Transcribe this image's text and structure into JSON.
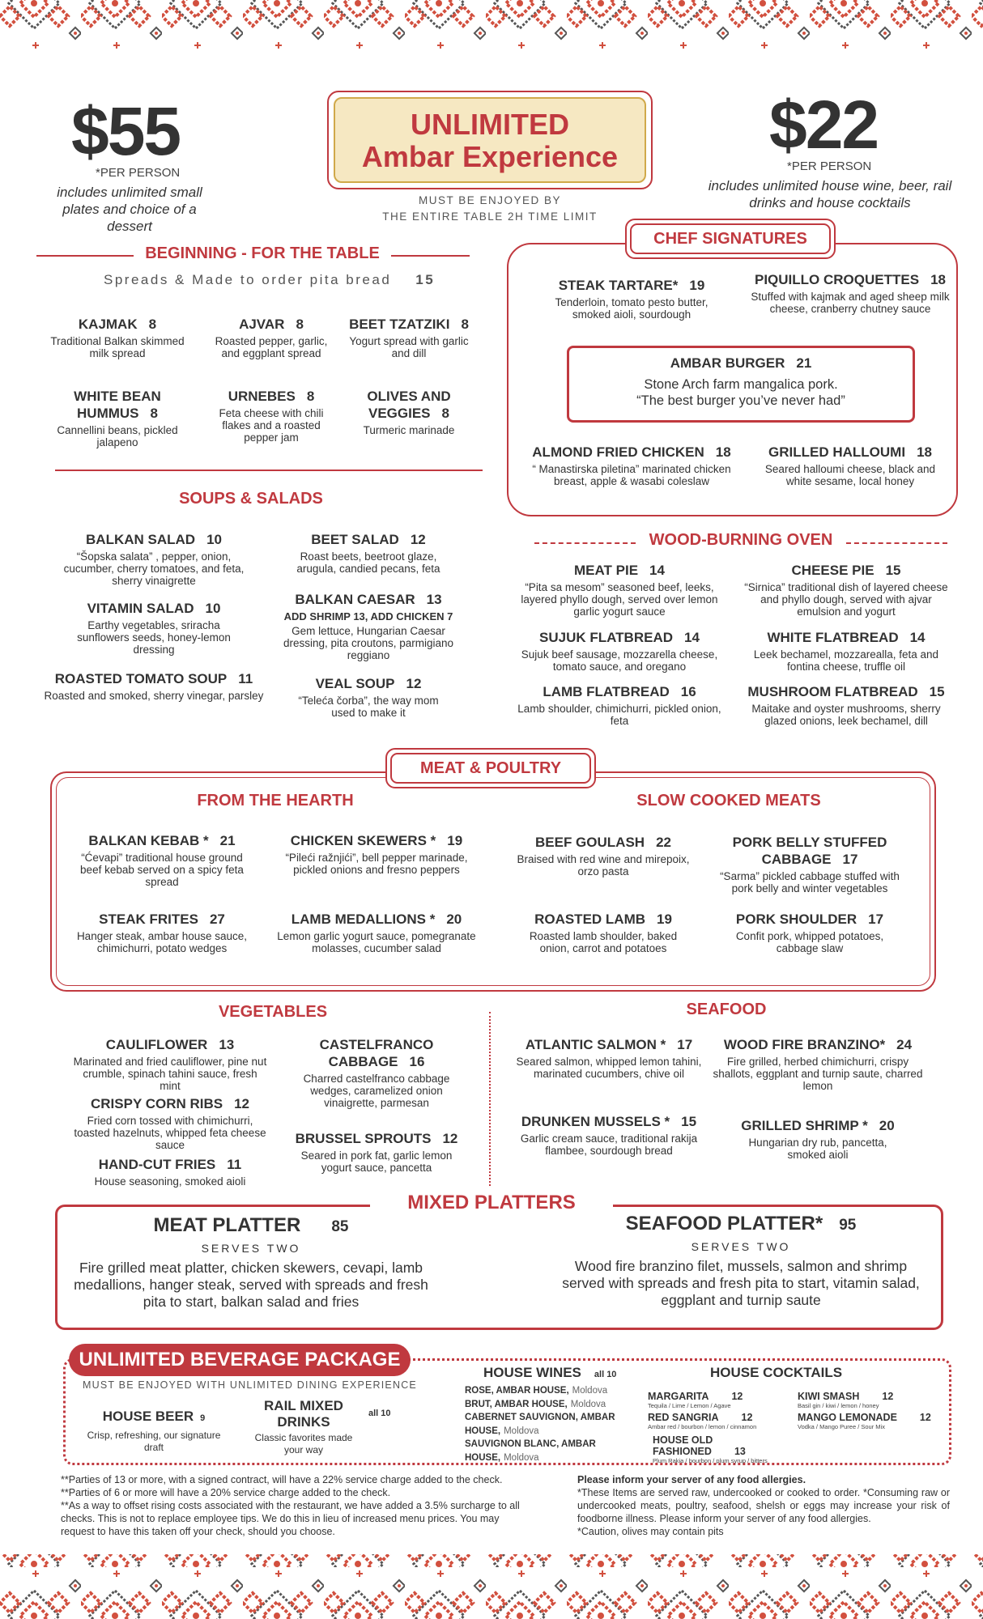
{
  "colors": {
    "accent": "#c0393f",
    "hero_bg": "#f6e8c2",
    "text": "#333333"
  },
  "header": {
    "left_price": "$55",
    "left_per": "*PER PERSON",
    "left_includes": "includes unlimited small plates and choice of a dessert",
    "hero_line1": "UNLIMITED",
    "hero_line2": "Ambar Experience",
    "hero_note1": "MUST BE ENJOYED BY",
    "hero_note2": "THE ENTIRE TABLE 2H TIME LIMIT",
    "right_price": "$22",
    "right_per": "*PER PERSON",
    "right_includes": "includes unlimited house wine, beer, rail drinks and house cocktails"
  },
  "beginning": {
    "title": "BEGINNING - FOR THE TABLE",
    "spreads": "Spreads & Made to order pita bread",
    "spreads_price": "15",
    "items": [
      {
        "name": "KAJMAK",
        "price": "8",
        "desc": "Traditional Balkan skimmed milk spread"
      },
      {
        "name": "AJVAR",
        "price": "8",
        "desc": "Roasted pepper, garlic, and eggplant spread"
      },
      {
        "name": "BEET TZATZIKI",
        "price": "8",
        "desc": "Yogurt spread with garlic and dill"
      },
      {
        "name": "WHITE BEAN HUMMUS",
        "price": "8",
        "desc": "Cannellini beans, pickled jalapeno"
      },
      {
        "name": "URNEBES",
        "price": "8",
        "desc": "Feta cheese with chili flakes and a roasted pepper jam"
      },
      {
        "name": "OLIVES AND VEGGIES",
        "price": "8",
        "desc": "Turmeric marinade"
      }
    ]
  },
  "soups": {
    "title": "SOUPS & SALADS",
    "items": [
      {
        "name": "BALKAN SALAD",
        "price": "10",
        "desc": "“Šopska salata” , pepper, onion, cucumber, cherry tomatoes, and feta, sherry vinaigrette"
      },
      {
        "name": "VITAMIN SALAD",
        "price": "10",
        "desc": "Earthy vegetables, sriracha sunflowers seeds, honey-lemon dressing"
      },
      {
        "name": "ROASTED TOMATO SOUP",
        "price": "11",
        "desc": "Roasted and smoked, sherry vinegar, parsley"
      },
      {
        "name": "BEET SALAD",
        "price": "12",
        "desc": "Roast beets, beetroot glaze, arugula, candied pecans, feta"
      },
      {
        "name": "BALKAN CAESAR",
        "price": "13",
        "addon": "ADD SHRIMP 13, ADD CHICKEN 7",
        "desc": "Gem lettuce, Hungarian Caesar dressing, pita croutons, parmigiano reggiano"
      },
      {
        "name": "VEAL SOUP",
        "price": "12",
        "desc": "“Teleća čorba”, the way mom used to make it"
      }
    ]
  },
  "chef": {
    "title": "CHEF SIGNATURES",
    "items": [
      {
        "name": "STEAK TARTARE*",
        "price": "19",
        "desc": "Tenderloin, tomato pesto butter, smoked aioli, sourdough"
      },
      {
        "name": "PIQUILLO CROQUETTES",
        "price": "18",
        "desc": "Stuffed with kajmak and aged sheep milk cheese, cranberry chutney sauce"
      },
      {
        "name": "ALMOND FRIED CHICKEN",
        "price": "18",
        "desc": "“ Manastirska piletina” marinated chicken breast, apple & wasabi coleslaw"
      },
      {
        "name": "GRILLED HALLOUMI",
        "price": "18",
        "desc": "Seared halloumi cheese, black and white sesame, local honey"
      }
    ],
    "burger": {
      "name": "AMBAR BURGER",
      "price": "21",
      "desc1": "Stone Arch farm mangalica pork.",
      "desc2": "“The best burger you’ve never had”"
    }
  },
  "oven": {
    "title": "WOOD-BURNING OVEN",
    "items": [
      {
        "name": "MEAT PIE",
        "price": "14",
        "desc": "“Pita sa mesom” seasoned beef, leeks, layered phyllo dough, served over lemon garlic yogurt sauce"
      },
      {
        "name": "CHEESE PIE",
        "price": "15",
        "desc": "“Sirnica” traditional dish of layered cheese and phyllo dough, served with ajvar emulsion and yogurt"
      },
      {
        "name": "SUJUK FLATBREAD",
        "price": "14",
        "desc": "Sujuk beef sausage, mozzarella cheese, tomato sauce, and oregano"
      },
      {
        "name": "WHITE FLATBREAD",
        "price": "14",
        "desc": "Leek bechamel, mozzarealla, feta and fontina cheese, truffle oil"
      },
      {
        "name": "LAMB FLATBREAD",
        "price": "16",
        "desc": "Lamb shoulder, chimichurri, pickled onion, feta"
      },
      {
        "name": "MUSHROOM FLATBREAD",
        "price": "15",
        "desc": "Maitake and oyster mushrooms, sherry glazed onions, leek bechamel, dill"
      }
    ]
  },
  "meat": {
    "title": "MEAT & POULTRY",
    "hearth_title": "FROM THE HEARTH",
    "slow_title": "SLOW COOKED MEATS",
    "hearth": [
      {
        "name": "BALKAN KEBAB *",
        "price": "21",
        "desc": "“Ćevapi” traditional house ground beef kebab served on a spicy feta spread"
      },
      {
        "name": "CHICKEN SKEWERS *",
        "price": "19",
        "desc": "“Pileći ražnjići”, bell pepper marinade, pickled onions and fresno peppers"
      },
      {
        "name": "STEAK FRITES",
        "price": "27",
        "desc": "Hanger steak, ambar house sauce, chimichurri, potato wedges"
      },
      {
        "name": "LAMB MEDALLIONS *",
        "price": "20",
        "desc": "Lemon garlic yogurt sauce, pomegranate molasses, cucumber salad"
      }
    ],
    "slow": [
      {
        "name": "BEEF GOULASH",
        "price": "22",
        "desc": "Braised with red wine and mirepoix, orzo pasta"
      },
      {
        "name": "PORK BELLY STUFFED CABBAGE",
        "price": "17",
        "desc": "“Sarma” pickled cabbage stuffed with pork belly and winter vegetables"
      },
      {
        "name": "ROASTED LAMB",
        "price": "19",
        "desc": "Roasted lamb shoulder, baked onion, carrot and potatoes"
      },
      {
        "name": "PORK SHOULDER",
        "price": "17",
        "desc": "Confit pork, whipped potatoes, cabbage slaw"
      }
    ]
  },
  "vegetables": {
    "title": "VEGETABLES",
    "items": [
      {
        "name": "CAULIFLOWER",
        "price": "13",
        "desc": "Marinated and fried cauliflower, pine nut crumble, spinach tahini sauce, fresh mint"
      },
      {
        "name": "CRISPY CORN RIBS",
        "price": "12",
        "desc": "Fried corn tossed with chimichurri, toasted hazelnuts, whipped feta cheese sauce"
      },
      {
        "name": "HAND-CUT FRIES",
        "price": "11",
        "desc": "House seasoning, smoked aioli"
      },
      {
        "name": "CASTELFRANCO CABBAGE",
        "price": "16",
        "desc": "Charred castelfranco cabbage wedges, caramelized onion vinaigrette, parmesan"
      },
      {
        "name": "BRUSSEL SPROUTS",
        "price": "12",
        "desc": "Seared in pork fat, garlic lemon yogurt sauce, pancetta"
      }
    ]
  },
  "seafood": {
    "title": "SEAFOOD",
    "items": [
      {
        "name": "ATLANTIC SALMON *",
        "price": "17",
        "desc": "Seared salmon, whipped lemon tahini, marinated cucumbers, chive oil"
      },
      {
        "name": "DRUNKEN MUSSELS *",
        "price": "15",
        "desc": "Garlic cream sauce, traditional rakija flambee, sourdough bread"
      },
      {
        "name": "WOOD FIRE BRANZINO*",
        "price": "24",
        "desc": "Fire grilled, herbed chimichurri, crispy shallots, eggplant and turnip saute, charred lemon"
      },
      {
        "name": "GRILLED SHRIMP *",
        "price": "20",
        "desc": "Hungarian dry rub, pancetta, smoked aioli"
      }
    ]
  },
  "platters": {
    "title": "MIXED PLATTERS",
    "meat": {
      "name": "MEAT PLATTER",
      "price": "85",
      "serves": "SERVES TWO",
      "desc": "Fire grilled meat platter, chicken skewers, cevapi, lamb medallions, hanger steak, served with spreads and fresh pita to start, balkan salad and fries"
    },
    "seafood": {
      "name": "SEAFOOD PLATTER*",
      "price": "95",
      "serves": "SERVES TWO",
      "desc": "Wood fire branzino filet, mussels, salmon and shrimp served with spreads and fresh pita to start, vitamin salad, eggplant and turnip saute"
    }
  },
  "beverage": {
    "title": "UNLIMITED BEVERAGE PACKAGE",
    "note": "MUST BE ENJOYED WITH UNLIMITED DINING EXPERIENCE",
    "beer": {
      "name": "HOUSE BEER",
      "price": "9",
      "desc": "Crisp, refreshing, our signature draft"
    },
    "rail": {
      "name": "RAIL MIXED DRINKS",
      "price": "all 10",
      "desc": "Classic favorites made your way"
    },
    "wines": {
      "title": "HOUSE WINES",
      "price": "all 10",
      "items": [
        {
          "name": "ROSE, AMBAR HOUSE,",
          "origin": "Moldova"
        },
        {
          "name": "BRUT, AMBAR HOUSE,",
          "origin": "Moldova"
        },
        {
          "name": "CABERNET SAUVIGNON, AMBAR HOUSE,",
          "origin": "Moldova"
        },
        {
          "name": "SAUVIGNON BLANC, AMBAR HOUSE,",
          "origin": "Moldova"
        }
      ]
    },
    "cocktails": {
      "title": "HOUSE COCKTAILS",
      "items": [
        {
          "name": "MARGARITA",
          "price": "12",
          "desc": "Tequila / Lime / Lemon / Agave"
        },
        {
          "name": "KIWI SMASH",
          "price": "12",
          "desc": "Basil gin / kiwi / lemon / honey"
        },
        {
          "name": "RED SANGRIA",
          "price": "12",
          "desc": "Ambar red / bourbon / lemon / cinnamon"
        },
        {
          "name": "MANGO LEMONADE",
          "price": "12",
          "desc": "Vodka / Mango Puree / Sour Mix"
        },
        {
          "name": "HOUSE OLD FASHIONED",
          "price": "13",
          "desc": "Plum Rakia / bourbon / plum syrup / bitters"
        }
      ]
    }
  },
  "footer": {
    "left": [
      "**Parties of 13 or more, with a signed contract, will have a 22% service charge added to the check.",
      "**Parties of 6 or more will have a 20% service charge added to the check.",
      "**As a way to offset rising costs associated with the restaurant, we have added a 3.5% surcharge to all checks. This is not to replace employee tips. We do this in lieu of increased menu prices. You may request to have this taken off your check, should you choose."
    ],
    "allergy_title": "Please inform your server of any food allergies.",
    "right": [
      "*These Items are served raw, undercooked or cooked to order. *Consuming raw or undercooked meats, poultry, seafood, shelsh or eggs may increase your risk of foodborne illness. Please inform your server of any food allergies.",
      "*Caution, olives may contain pits"
    ]
  }
}
